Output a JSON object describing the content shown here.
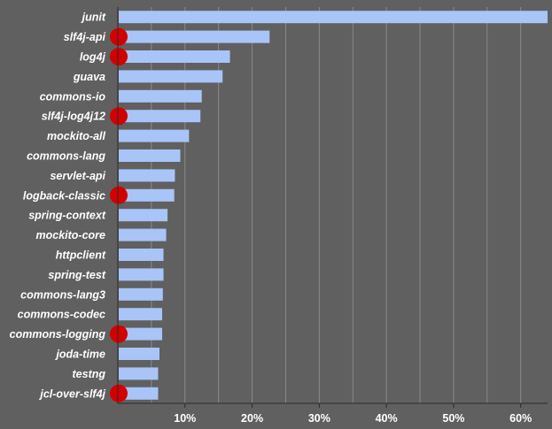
{
  "chart_data": {
    "type": "bar",
    "orientation": "horizontal",
    "title": "",
    "xlabel": "",
    "ylabel": "",
    "xlim": [
      0,
      64
    ],
    "xticks": [
      10,
      20,
      30,
      40,
      50,
      60
    ],
    "tick_suffix": "%",
    "grid": true,
    "bar_color": "#a9c4f7",
    "marker_color": "#d20000",
    "categories": [
      "junit",
      "slf4j-api",
      "log4j",
      "guava",
      "commons-io",
      "slf4j-log4j12",
      "mockito-all",
      "commons-lang",
      "servlet-api",
      "logback-classic",
      "spring-context",
      "mockito-core",
      "httpclient",
      "spring-test",
      "commons-lang3",
      "commons-codec",
      "commons-logging",
      "joda-time",
      "testng",
      "jcl-over-slf4j"
    ],
    "values": [
      64.0,
      22.6,
      16.7,
      15.6,
      12.5,
      12.3,
      10.6,
      9.3,
      8.5,
      8.4,
      7.4,
      7.2,
      6.8,
      6.8,
      6.7,
      6.6,
      6.6,
      6.2,
      6.0,
      6.0
    ],
    "logging_marker": [
      false,
      true,
      true,
      false,
      false,
      true,
      false,
      false,
      false,
      true,
      false,
      false,
      false,
      false,
      false,
      false,
      true,
      false,
      false,
      true
    ]
  }
}
